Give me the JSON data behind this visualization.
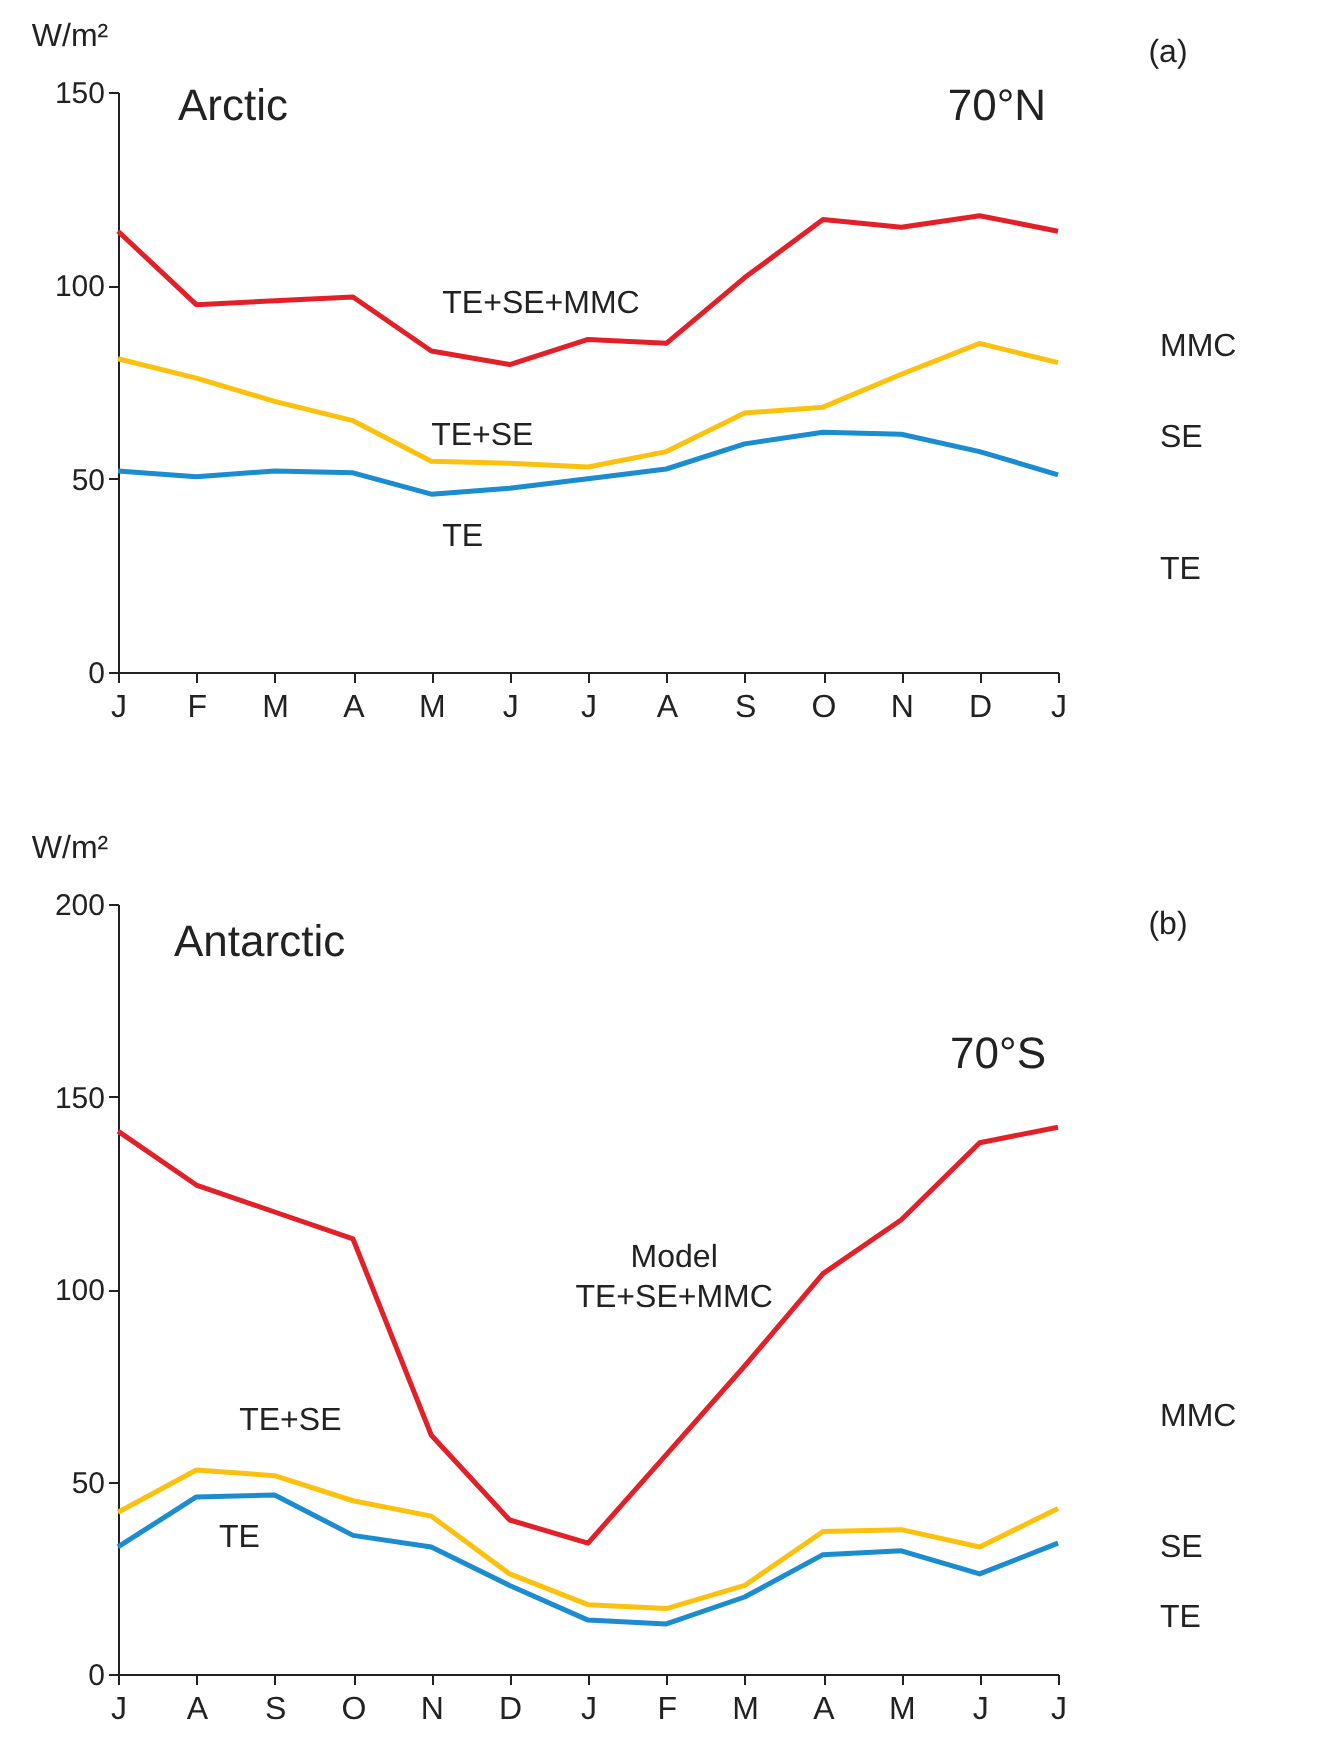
{
  "chart_data": [
    {
      "type": "line",
      "title": "Arctic",
      "subtitle": "70°N",
      "ylabel": "W/m²",
      "categories": [
        "J",
        "F",
        "M",
        "A",
        "M",
        "J",
        "J",
        "A",
        "S",
        "O",
        "N",
        "D",
        "J"
      ],
      "series": [
        {
          "name": "TE+SE+MMC",
          "color": "#e32028",
          "values": [
            114,
            95,
            96,
            97,
            83,
            79.5,
            86,
            85,
            102,
            117,
            115,
            118,
            114
          ]
        },
        {
          "name": "TE+SE",
          "color": "#fcc10f",
          "values": [
            81,
            76,
            70,
            65,
            54.5,
            54,
            53,
            57,
            67,
            68.5,
            77,
            85,
            80
          ]
        },
        {
          "name": "TE",
          "color": "#1a8ccf",
          "values": [
            52,
            50.5,
            52,
            51.5,
            46,
            47.5,
            50,
            52.5,
            59,
            62,
            61.5,
            57,
            51
          ]
        }
      ],
      "ylim": [
        0,
        150
      ],
      "yticks": [
        0,
        50,
        100,
        150
      ],
      "grid": false,
      "annotations": [
        "(a)",
        "MMC",
        "SE",
        "TE"
      ]
    },
    {
      "type": "line",
      "title": "Antarctic",
      "subtitle": "70°S",
      "ylabel": "W/m²",
      "categories": [
        "J",
        "A",
        "S",
        "O",
        "N",
        "D",
        "J",
        "F",
        "M",
        "A",
        "M",
        "J",
        "J"
      ],
      "series": [
        {
          "name": "TE+SE+MMC",
          "color": "#e32028",
          "values": [
            141,
            127,
            120,
            113,
            62,
            40,
            34,
            57,
            80,
            104,
            118,
            138,
            142
          ]
        },
        {
          "name": "TE+SE",
          "color": "#fcc10f",
          "values": [
            42,
            53,
            51.5,
            45,
            41,
            26,
            18,
            17,
            23,
            37,
            37.5,
            33,
            43
          ]
        },
        {
          "name": "TE",
          "color": "#1a8ccf",
          "values": [
            33,
            46,
            46.5,
            36,
            33,
            23,
            14,
            13,
            20,
            31,
            32,
            26,
            34
          ]
        }
      ],
      "ylim": [
        0,
        200
      ],
      "yticks": [
        0,
        50,
        100,
        150,
        200
      ],
      "grid": false,
      "annotations": [
        "(b)",
        "MMC",
        "SE",
        "TE",
        "Model"
      ]
    }
  ]
}
